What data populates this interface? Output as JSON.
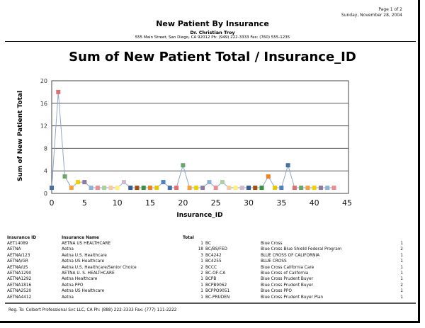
{
  "header": {
    "page": "Page 1 of 2",
    "date": "Sunday, November 28, 2004",
    "title": "New Patient By Insurance",
    "doctor": "Dr. Christian Troy",
    "address": "555 Main Street, San Diego, CA 92012 Ph: (949) 222-3333 Fax: (760) 555-1235"
  },
  "chart_data": {
    "type": "line",
    "title": "Sum of New Patient Total / Insurance_ID",
    "xlabel": "Insurance_ID",
    "ylabel": "Sum of New Patient Total",
    "xlim": [
      0,
      45
    ],
    "ylim": [
      0,
      20
    ],
    "xticks": [
      0,
      5,
      10,
      15,
      20,
      25,
      30,
      35,
      40,
      45
    ],
    "yticks": [
      0,
      4,
      8,
      12,
      16,
      20
    ],
    "grid": "horizontal",
    "line_color": "#8fa7c8",
    "marker_colors": [
      "#4a6fa5",
      "#e07070",
      "#6aa56a",
      "#f5a040",
      "#f0d000",
      "#8a7aa0",
      "#8fb0d8",
      "#e89090",
      "#a8d0a0",
      "#f8c8a0",
      "#fff080",
      "#d0b8d0",
      "#3a5a90",
      "#a05010",
      "#3a9040",
      "#f08020",
      "#e8c800",
      "#5080c0"
    ],
    "x": [
      0,
      1,
      2,
      3,
      4,
      5,
      6,
      7,
      8,
      9,
      10,
      11,
      12,
      13,
      14,
      15,
      16,
      17,
      18,
      19,
      20,
      21,
      22,
      23,
      24,
      25,
      26,
      27,
      28,
      29,
      30,
      31,
      32,
      33,
      34,
      35,
      36,
      37,
      38,
      39,
      40,
      41,
      42,
      43
    ],
    "y": [
      1,
      18,
      3,
      1,
      2,
      2,
      1,
      1,
      1,
      1,
      1,
      2,
      1,
      1,
      1,
      1,
      1,
      2,
      1,
      1,
      5,
      1,
      1,
      1,
      2,
      1,
      2,
      1,
      1,
      1,
      1,
      1,
      1,
      3,
      1,
      1,
      5,
      1,
      1,
      1,
      1,
      1,
      1,
      1
    ]
  },
  "table": {
    "headers": [
      "Insurance ID",
      "Insurance Name",
      "Total"
    ],
    "left": [
      [
        "AET14089",
        "AETNA US HEALTHCARE",
        "1"
      ],
      [
        "AETNA",
        "Aetna",
        "18"
      ],
      [
        "AETNA/123",
        "Aetna U.S. Healthcare",
        "3"
      ],
      [
        "AETNA/GR",
        "Aetna US Healthcare",
        "1"
      ],
      [
        "AETNA/US",
        "Aetna U.S. Healthcare/Senior Choice",
        "2"
      ],
      [
        "AETNA1290",
        "AETNA U. S. HEALTHCARE",
        "2"
      ],
      [
        "AETNA1292",
        "Aetna Healthcare",
        "1"
      ],
      [
        "AETNA1816",
        "Aetna PPO",
        "1"
      ],
      [
        "AETNA2520",
        "Aetna US Healthcare",
        "1"
      ],
      [
        "AETNA4412",
        "Aetna",
        "1"
      ]
    ],
    "right": [
      [
        "BC",
        "Blue Cross",
        "1"
      ],
      [
        "BC/BS/FED",
        "Blue Cross Blue Shield Federal Program",
        "2"
      ],
      [
        "BC4242",
        "BLUE CROSS OF CALIFORNIA",
        "1"
      ],
      [
        "BC4255",
        "BLUE CROSS",
        "1"
      ],
      [
        "BCCC",
        "Blue Cross California Care",
        "1"
      ],
      [
        "BC-OF-CA",
        "Blue Cross of California",
        "1"
      ],
      [
        "BCPB",
        "Blue Cross Prudent Buyer",
        "1"
      ],
      [
        "BCPB9062",
        "Blue Cross Prudent Buyer",
        "2"
      ],
      [
        "BCPPO9051",
        "Blue Cross PPO",
        "1"
      ],
      [
        "BC-PRUDEN",
        "Blue Cross Prudent Buyer Plan",
        "1"
      ]
    ]
  },
  "footer": "Reg. To: Colbert Professional Svc LLC, CA Ph: (888) 222-3333 Fax: (777) 111-2222"
}
